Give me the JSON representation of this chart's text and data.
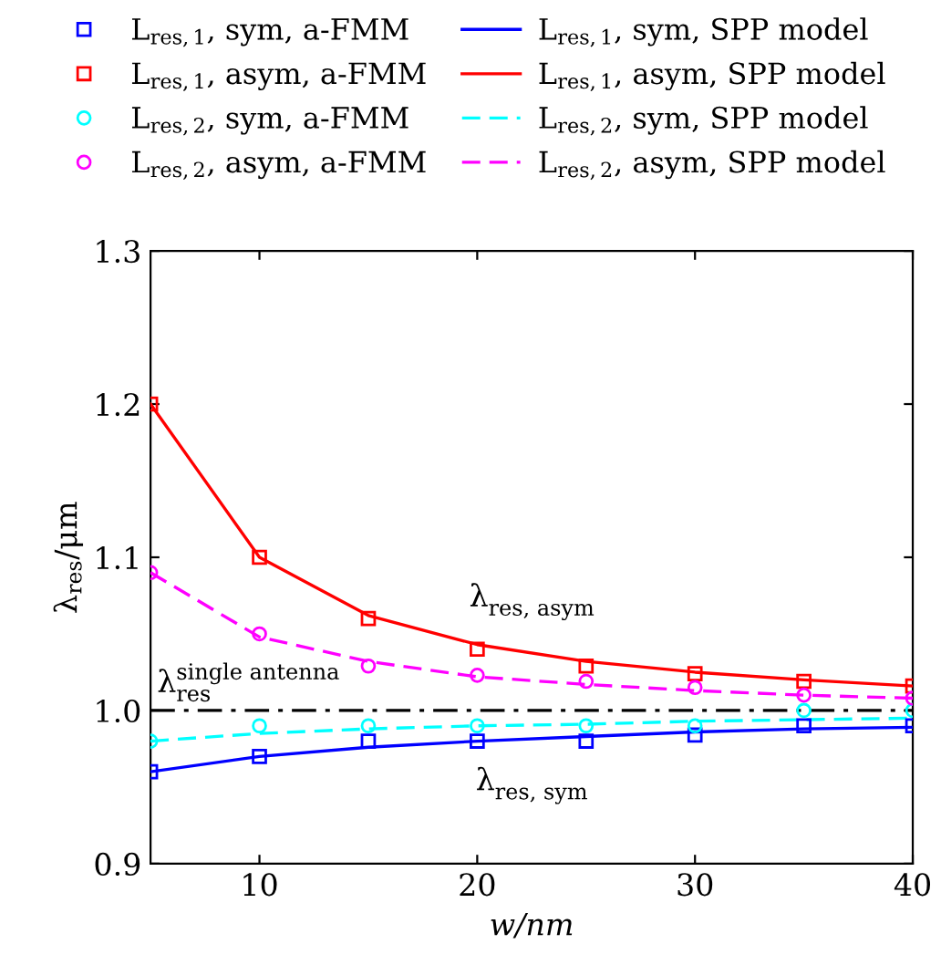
{
  "chart_data": {
    "type": "line",
    "xlabel": "w/nm",
    "ylabel": "λ$_{res}$/μm",
    "x": [
      5,
      10,
      15,
      20,
      25,
      30,
      35,
      40
    ],
    "xlim": [
      5,
      40
    ],
    "xticks": [
      10,
      20,
      30,
      40
    ],
    "ylim": [
      0.9,
      1.3
    ],
    "yticks": [
      0.9,
      {
        "value": 1.0,
        "label": "1.0"
      },
      1.1,
      1.2,
      1.3
    ],
    "grid": false,
    "legend": "top",
    "series": [
      {
        "name": "L$_{res,1}$, sym, a-FMM",
        "type": "scatter",
        "marker": "square",
        "color": "#0000ff",
        "values": [
          0.96,
          0.97,
          0.98,
          0.98,
          0.98,
          0.984,
          0.99,
          0.99
        ]
      },
      {
        "name": "L$_{res,1}$, asym, a-FMM",
        "type": "scatter",
        "marker": "square",
        "color": "#ff0000",
        "values": [
          1.2,
          1.1,
          1.06,
          1.04,
          1.029,
          1.024,
          1.019,
          1.016
        ]
      },
      {
        "name": "L$_{res,2}$, sym, a-FMM",
        "type": "scatter",
        "marker": "circle",
        "color": "#00ffff",
        "values": [
          0.98,
          0.99,
          0.99,
          0.99,
          0.99,
          0.99,
          1.0,
          1.0
        ]
      },
      {
        "name": "L$_{res,2}$, asym, a-FMM",
        "type": "scatter",
        "marker": "circle",
        "color": "#ff00ff",
        "values": [
          1.09,
          1.05,
          1.029,
          1.023,
          1.019,
          1.015,
          1.01,
          1.008
        ]
      },
      {
        "name": "L$_{res,1}$, sym, SPP model",
        "line_style": "solid",
        "color": "#0000ff",
        "values": [
          0.96,
          0.97,
          0.976,
          0.98,
          0.983,
          0.986,
          0.988,
          0.989
        ]
      },
      {
        "name": "L$_{res,1}$, asym, SPP model",
        "line_style": "solid",
        "color": "#ff0000",
        "values": [
          1.2,
          1.1,
          1.062,
          1.043,
          1.032,
          1.025,
          1.02,
          1.016
        ]
      },
      {
        "name": "L$_{res,2}$, sym, SPP model",
        "line_style": "dashed",
        "color": "#00ffff",
        "values": [
          0.98,
          0.985,
          0.988,
          0.99,
          0.991,
          0.993,
          0.994,
          0.995
        ]
      },
      {
        "name": "L$_{res,2}$, asym, SPP model",
        "line_style": "dashed",
        "color": "#ff00ff",
        "values": [
          1.09,
          1.048,
          1.032,
          1.022,
          1.017,
          1.013,
          1.01,
          1.008
        ]
      }
    ],
    "ref_lines": [
      {
        "axis": "y",
        "value": 1.0,
        "label": "λ$^{single antenna}$$_{res}$",
        "color": "#000000",
        "line_style": "dashdot"
      }
    ],
    "annotations": [
      "λ$_{res, asym}$",
      "λ$_{res, sym}$"
    ]
  }
}
